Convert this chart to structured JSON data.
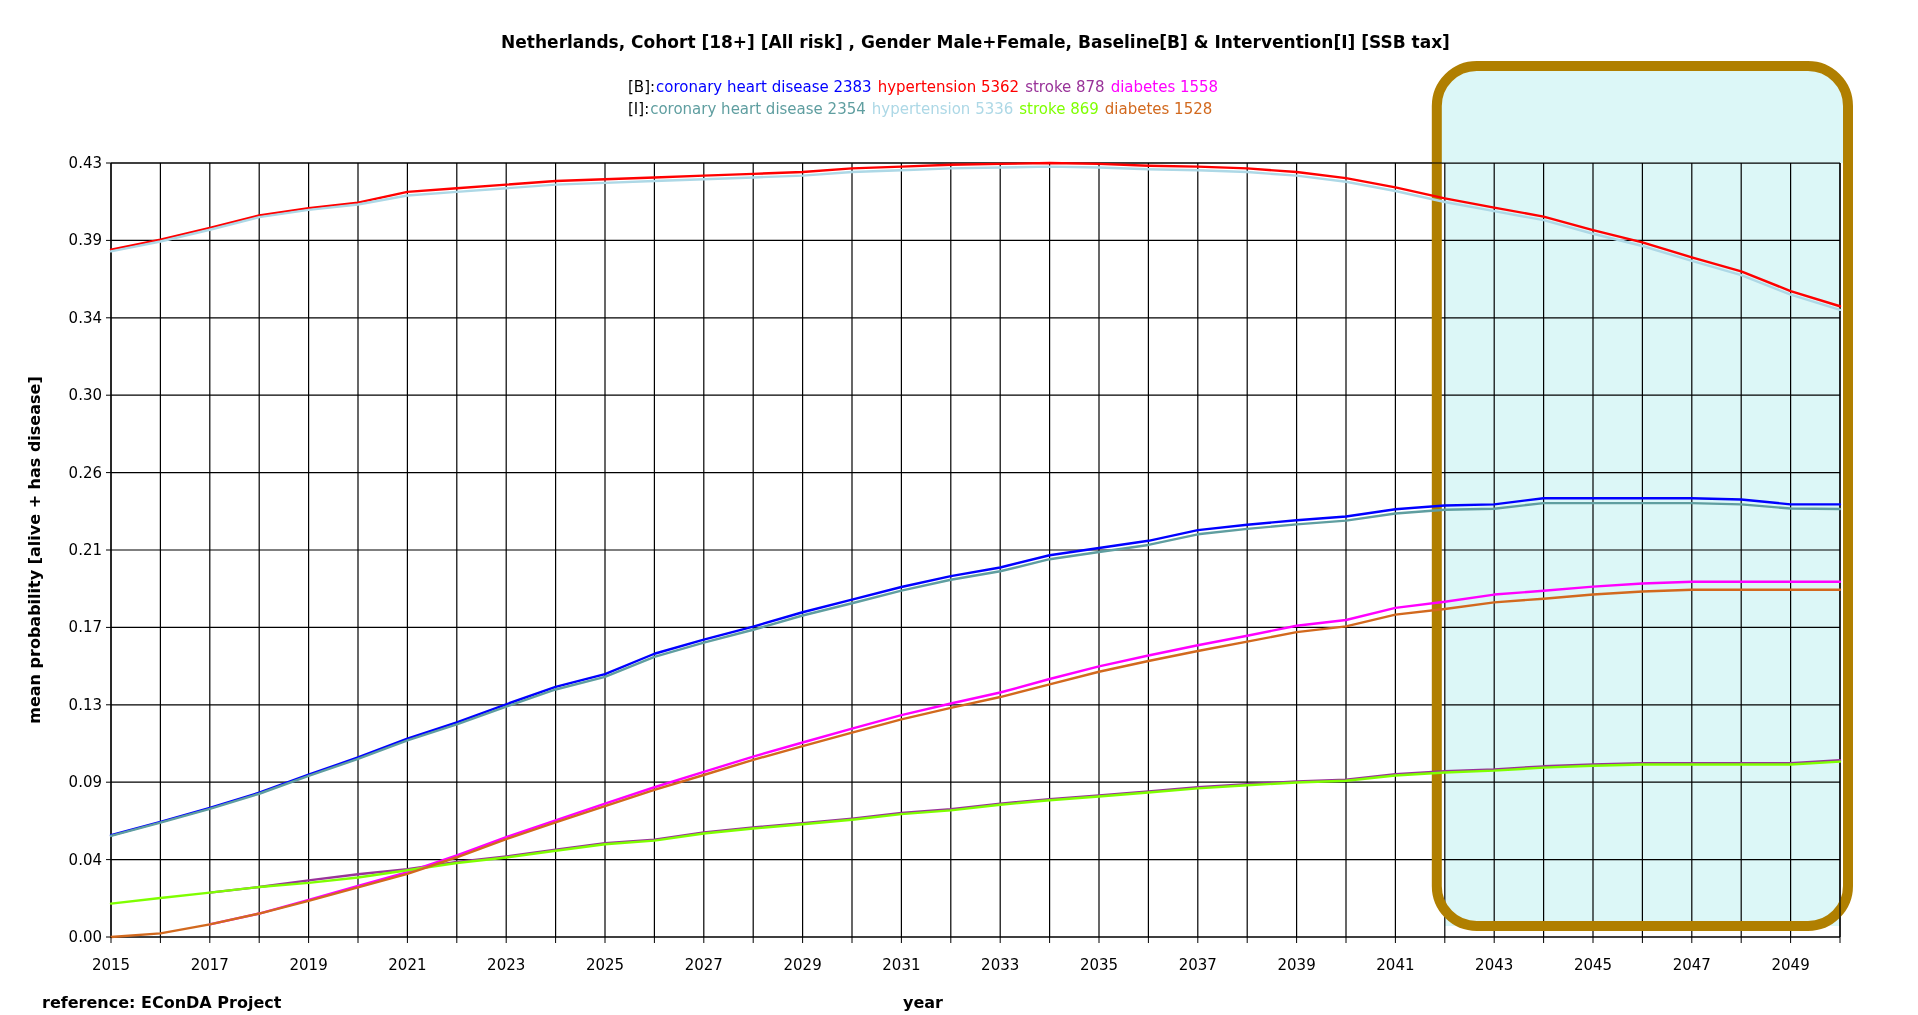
{
  "chart_data": {
    "type": "line",
    "title": "Netherlands, Cohort [18+] [All risk] , Gender Male+Female, Baseline[B] & Intervention[I] [SSB tax]",
    "xlabel": "year",
    "ylabel": "mean probability [alive + has disease]",
    "annotations": [
      "[B]:",
      "[I]:",
      "reference: EConDA Project"
    ],
    "x": [
      2015,
      2016,
      2017,
      2018,
      2019,
      2020,
      2021,
      2022,
      2023,
      2024,
      2025,
      2026,
      2027,
      2028,
      2029,
      2030,
      2031,
      2032,
      2033,
      2034,
      2035,
      2036,
      2037,
      2038,
      2039,
      2040,
      2041,
      2042,
      2043,
      2044,
      2045,
      2046,
      2047,
      2048,
      2049,
      2050
    ],
    "series": [
      {
        "name": "coronary heart disease 2383",
        "color": "#0000ff",
        "values": [
          0.0564,
          0.0638,
          0.0715,
          0.08,
          0.09,
          0.0995,
          0.11,
          0.119,
          0.129,
          0.1386,
          0.1457,
          0.157,
          0.1648,
          0.172,
          0.18,
          0.187,
          0.194,
          0.2,
          0.2048,
          0.2116,
          0.2156,
          0.2196,
          0.2255,
          0.2285,
          0.231,
          0.2331,
          0.2371,
          0.2392,
          0.2398,
          0.2432,
          0.2432,
          0.2432,
          0.2432,
          0.2425,
          0.2398,
          0.2398
        ]
      },
      {
        "name": "hypertension 5362",
        "color": "#ff0000",
        "values": [
          0.381,
          0.3865,
          0.393,
          0.4,
          0.404,
          0.407,
          0.413,
          0.415,
          0.417,
          0.419,
          0.42,
          0.421,
          0.422,
          0.423,
          0.424,
          0.426,
          0.427,
          0.428,
          0.4285,
          0.429,
          0.4285,
          0.4275,
          0.427,
          0.426,
          0.424,
          0.4206,
          0.4155,
          0.4094,
          0.4043,
          0.3993,
          0.3918,
          0.385,
          0.3767,
          0.3689,
          0.358,
          0.3496
        ]
      },
      {
        "name": "stroke 878",
        "color": "#993399",
        "values": [
          null,
          null,
          0.0246,
          0.0277,
          0.0314,
          0.0348,
          0.0376,
          0.0416,
          0.0447,
          0.0484,
          0.052,
          0.054,
          0.058,
          0.0607,
          0.0631,
          0.0656,
          0.0687,
          0.0708,
          0.0739,
          0.0764,
          0.0785,
          0.0807,
          0.083,
          0.0847,
          0.0862,
          0.0872,
          0.0902,
          0.0919,
          0.0929,
          0.0946,
          0.0956,
          0.0963,
          0.0963,
          0.0963,
          0.0963,
          0.098
        ]
      },
      {
        "name": "diabetes 1558",
        "color": "#ff00ff",
        "values": [
          null,
          null,
          0.007,
          0.013,
          0.0206,
          0.0283,
          0.036,
          0.0453,
          0.0554,
          0.0647,
          0.0739,
          0.083,
          0.0915,
          0.1,
          0.1078,
          0.1155,
          0.123,
          0.1294,
          0.1355,
          0.143,
          0.15,
          0.156,
          0.1617,
          0.167,
          0.1725,
          0.1757,
          0.1824,
          0.1858,
          0.1898,
          0.1919,
          0.1942,
          0.1959,
          0.1969,
          0.1969,
          0.1969,
          0.1969
        ]
      },
      {
        "name": "coronary heart disease 2354",
        "color": "#5f9ea0",
        "values": [
          0.056,
          0.0634,
          0.071,
          0.0794,
          0.0893,
          0.0987,
          0.109,
          0.1178,
          0.1277,
          0.1372,
          0.1442,
          0.1553,
          0.1632,
          0.1703,
          0.1782,
          0.185,
          0.192,
          0.198,
          0.2027,
          0.2094,
          0.2134,
          0.2173,
          0.2232,
          0.2262,
          0.2287,
          0.2308,
          0.2347,
          0.2368,
          0.2374,
          0.2405,
          0.2405,
          0.2405,
          0.2405,
          0.2398,
          0.2375,
          0.2372
        ]
      },
      {
        "name": "hypertension 5336",
        "color": "#add8e6",
        "values": [
          0.38,
          0.3855,
          0.392,
          0.399,
          0.403,
          0.406,
          0.411,
          0.413,
          0.415,
          0.417,
          0.418,
          0.419,
          0.42,
          0.421,
          0.422,
          0.424,
          0.425,
          0.426,
          0.4265,
          0.427,
          0.4265,
          0.4255,
          0.425,
          0.424,
          0.422,
          0.4186,
          0.4135,
          0.4074,
          0.4023,
          0.3973,
          0.3898,
          0.383,
          0.3747,
          0.3669,
          0.356,
          0.3476
        ]
      },
      {
        "name": "stroke 869",
        "color": "#7fff00",
        "values": [
          0.0185,
          0.0216,
          0.0246,
          0.0277,
          0.03,
          0.033,
          0.037,
          0.041,
          0.0441,
          0.0478,
          0.0514,
          0.0534,
          0.0574,
          0.0601,
          0.0625,
          0.065,
          0.0681,
          0.0702,
          0.0733,
          0.0758,
          0.0779,
          0.0801,
          0.0824,
          0.0841,
          0.0856,
          0.0866,
          0.0895,
          0.0912,
          0.0922,
          0.0939,
          0.0949,
          0.0956,
          0.0956,
          0.0956,
          0.0956,
          0.0972
        ]
      },
      {
        "name": "diabetes 1528",
        "color": "#d2691e",
        "values": [
          0.0,
          0.002,
          0.007,
          0.013,
          0.02,
          0.0275,
          0.035,
          0.0442,
          0.0543,
          0.0635,
          0.0725,
          0.0815,
          0.0898,
          0.0982,
          0.1058,
          0.1133,
          0.1206,
          0.127,
          0.133,
          0.14,
          0.147,
          0.153,
          0.1585,
          0.1637,
          0.169,
          0.1722,
          0.1787,
          0.1818,
          0.1855,
          0.1875,
          0.1898,
          0.1915,
          0.1925,
          0.1925,
          0.1925,
          0.1925
        ]
      }
    ],
    "xlim": [
      2015,
      2050
    ],
    "xticks": [
      2015,
      {
        "value": 2016,
        "label": null
      },
      2017,
      {
        "value": 2018,
        "label": null
      },
      2019,
      {
        "value": 2020,
        "label": null
      },
      2021,
      {
        "value": 2022,
        "label": null
      },
      2023,
      {
        "value": 2024,
        "label": null
      },
      2025,
      {
        "value": 2026,
        "label": null
      },
      2027,
      {
        "value": 2028,
        "label": null
      },
      2029,
      {
        "value": 2030,
        "label": null
      },
      2031,
      {
        "value": 2032,
        "label": null
      },
      2033,
      {
        "value": 2034,
        "label": null
      },
      2035,
      {
        "value": 2036,
        "label": null
      },
      2037,
      {
        "value": 2038,
        "label": null
      },
      2039,
      {
        "value": 2040,
        "label": null
      },
      2041,
      {
        "value": 2042,
        "label": null
      },
      2043,
      {
        "value": 2044,
        "label": null
      },
      2045,
      {
        "value": 2046,
        "label": null
      },
      2047,
      {
        "value": 2048,
        "label": null
      },
      2049,
      {
        "value": 2050,
        "label": null
      }
    ],
    "ylim": [
      0,
      0.429
    ],
    "yticks": [
      {
        "value": 0,
        "label": "0.00"
      },
      {
        "value": 0.0429,
        "label": "0.04"
      },
      {
        "value": 0.0858,
        "label": "0.09"
      },
      {
        "value": 0.1287,
        "label": "0.13"
      },
      {
        "value": 0.1716,
        "label": "0.17"
      },
      {
        "value": 0.2145,
        "label": "0.21"
      },
      {
        "value": 0.2574,
        "label": "0.26"
      },
      {
        "value": 0.3003,
        "label": "0.30"
      },
      {
        "value": 0.3432,
        "label": "0.34"
      },
      {
        "value": 0.3861,
        "label": "0.39"
      },
      {
        "value": 0.429,
        "label": "0.43"
      }
    ],
    "bands": [
      {
        "axis": "x",
        "from": 2042,
        "to": 2050,
        "color": "#dcf7f7"
      }
    ],
    "grid": true,
    "legend": "top",
    "marker": "none",
    "line_style": "solid"
  }
}
